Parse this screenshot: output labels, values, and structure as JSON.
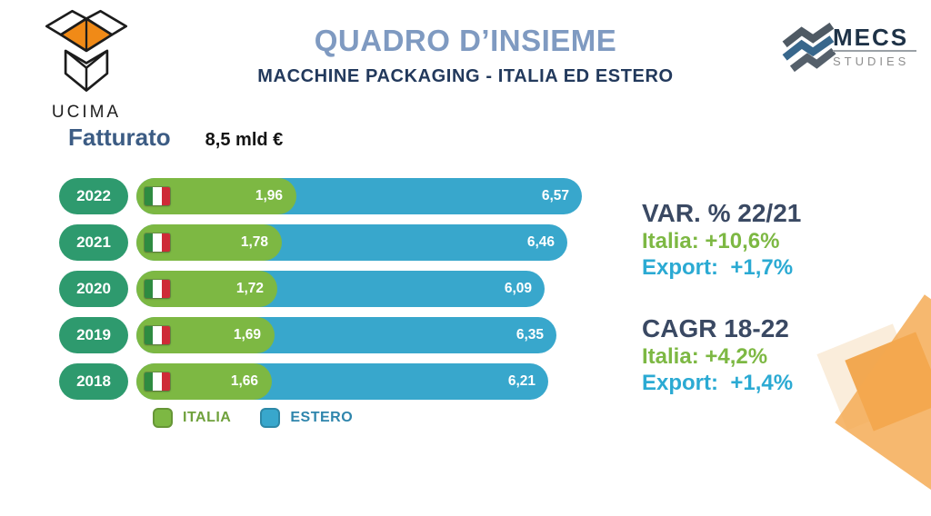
{
  "slide": {
    "title": "QUADRO D’INSIEME",
    "subtitle": "MACCHINE PACKAGING - ITALIA ED ESTERO"
  },
  "logos": {
    "ucima": {
      "label": "UCIMA"
    },
    "mecs": {
      "name": "MECS",
      "sub": "STUDIES"
    }
  },
  "kpi": {
    "label": "Fatturato",
    "value": "8,5 mld €"
  },
  "chart_data": {
    "type": "bar",
    "orientation": "horizontal",
    "stacked": true,
    "title": "Fatturato (mld €)",
    "categories": [
      "2022",
      "2021",
      "2020",
      "2019",
      "2018"
    ],
    "series": [
      {
        "name": "ITALIA",
        "color": "#7db843",
        "values": [
          1.96,
          1.78,
          1.72,
          1.69,
          1.66
        ],
        "labels": [
          "1,96",
          "1,78",
          "1,72",
          "1,69",
          "1,66"
        ]
      },
      {
        "name": "ESTERO",
        "color": "#38a7cc",
        "values": [
          6.57,
          6.46,
          6.09,
          6.35,
          6.21
        ],
        "labels": [
          "6,57",
          "6,46",
          "6,09",
          "6,35",
          "6,21"
        ]
      }
    ],
    "legend": [
      {
        "label": "ITALIA",
        "color": "#7db843"
      },
      {
        "label": "ESTERO",
        "color": "#38a7cc"
      }
    ],
    "legend_position": "bottom",
    "value_labels": "inside-end",
    "grid": false
  },
  "stats": [
    {
      "heading": "VAR. % 22/21",
      "rows": [
        {
          "text": "Italia: +10,6%",
          "color": "green"
        },
        {
          "text": "Export:  +1,7%",
          "color": "blue"
        }
      ]
    },
    {
      "heading": "CAGR 18-22",
      "rows": [
        {
          "text": "Italia: +4,2%",
          "color": "green"
        },
        {
          "text": "Export:  +1,4%",
          "color": "blue"
        }
      ]
    }
  ],
  "colors": {
    "title": "#7f9ac1",
    "subtitle": "#22395c",
    "italia_green": "#7db843",
    "estero_blue": "#38a7cc",
    "year_pill_teal": "#2e9a6e",
    "stat_heading_navy": "#3a4963",
    "decor_orange": "#f4a84f",
    "decor_cream": "#faeddb"
  }
}
